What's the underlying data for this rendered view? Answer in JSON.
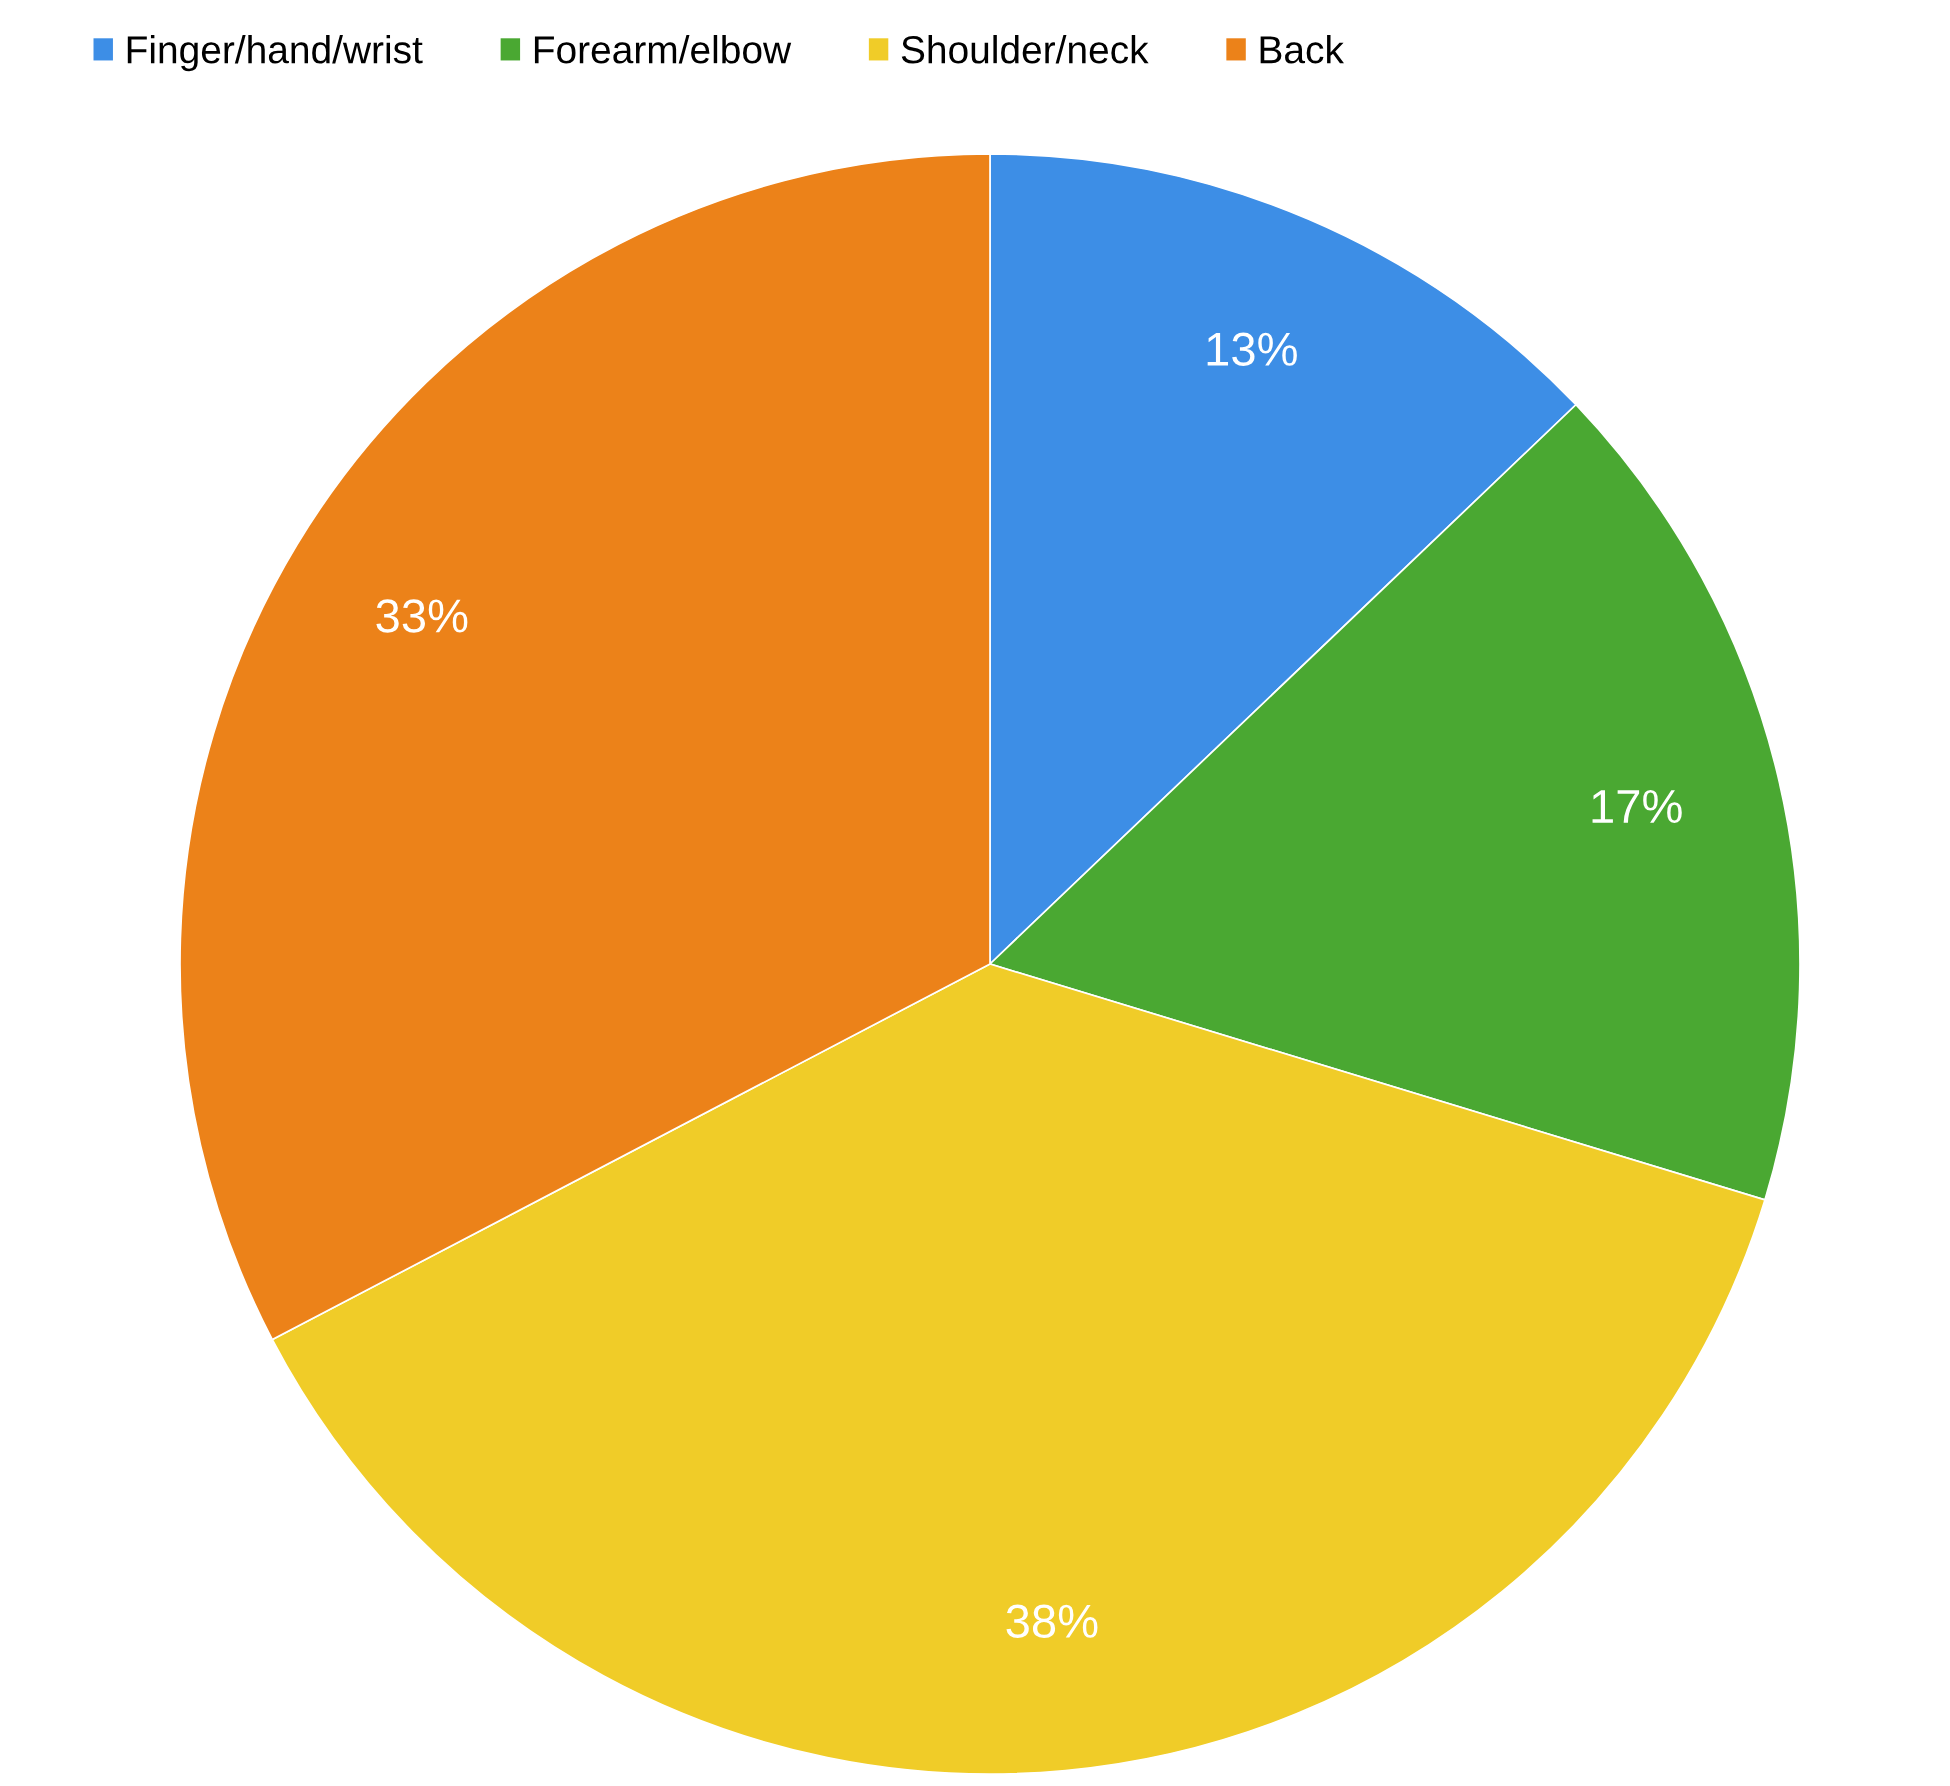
{
  "chart_data": {
    "type": "pie",
    "categories": [
      "Finger/hand/wrist",
      "Forearm/elbow",
      "Shoulder/neck",
      "Back"
    ],
    "values": [
      13,
      17,
      38,
      33
    ],
    "value_labels": [
      "13%",
      "17%",
      "38%",
      "33%"
    ],
    "colors": [
      "#3d8ee6",
      "#4aa832",
      "#f0cc28",
      "#ec8219"
    ],
    "legend": "top"
  }
}
